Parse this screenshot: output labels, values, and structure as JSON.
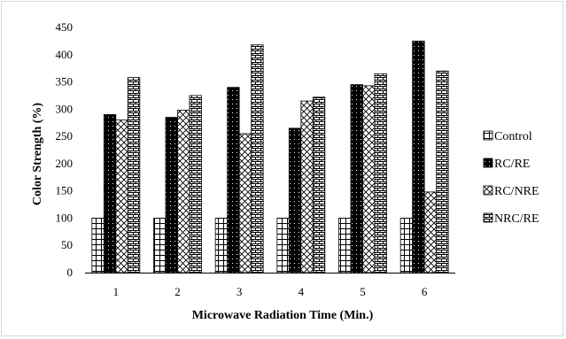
{
  "chart_data": {
    "type": "bar",
    "title": "",
    "xlabel": "Microwave Radiation Time (Min.)",
    "ylabel": "Color Strength (%)",
    "ylim": [
      0,
      450
    ],
    "yticks": [
      0,
      50,
      100,
      150,
      200,
      250,
      300,
      350,
      400,
      450
    ],
    "categories": [
      "1",
      "2",
      "3",
      "4",
      "5",
      "6"
    ],
    "grid": false,
    "legend_position": "right",
    "series": [
      {
        "name": "Control",
        "pattern": "grid",
        "values": [
          100,
          100,
          100,
          100,
          100,
          100
        ]
      },
      {
        "name": "RC/RE",
        "pattern": "dots-on-black",
        "values": [
          290,
          285,
          340,
          265,
          345,
          425
        ]
      },
      {
        "name": "RC/NRE",
        "pattern": "cross-hatch",
        "values": [
          280,
          298,
          255,
          315,
          343,
          148
        ]
      },
      {
        "name": "NRC/RE",
        "pattern": "brick",
        "values": [
          358,
          325,
          418,
          322,
          365,
          370
        ]
      }
    ]
  }
}
